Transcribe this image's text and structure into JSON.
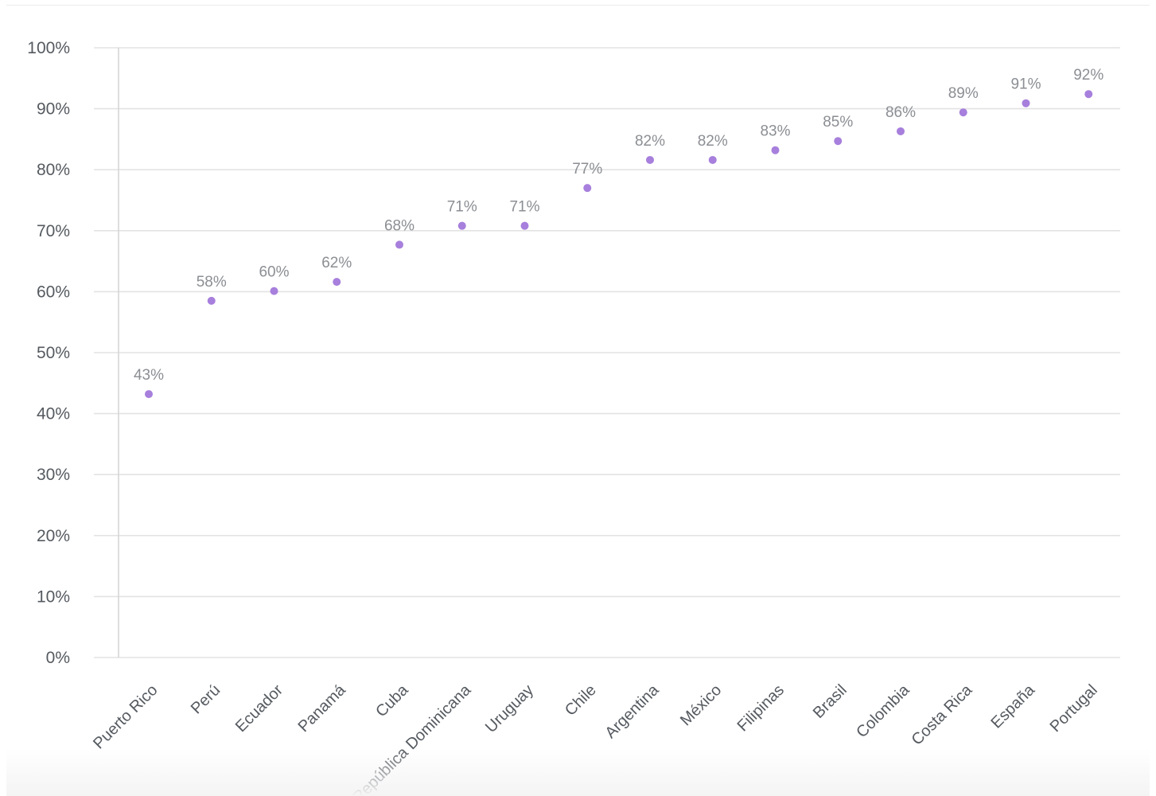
{
  "chart_data": {
    "type": "scatter",
    "categories": [
      "Puerto Rico",
      "Perú",
      "Ecuador",
      "Panamá",
      "Cuba",
      "República Dominicana",
      "Uruguay",
      "Chile",
      "Argentina",
      "México",
      "Filipinas",
      "Brasil",
      "Colombia",
      "Costa Rica",
      "España",
      "Portugal"
    ],
    "values": [
      43.2,
      58.5,
      60.1,
      61.6,
      67.7,
      70.8,
      70.8,
      77.0,
      81.6,
      81.6,
      83.2,
      84.7,
      86.3,
      89.4,
      90.9,
      92.4
    ],
    "data_labels": [
      "43%",
      "58%",
      "60%",
      "62%",
      "68%",
      "71%",
      "71%",
      "77%",
      "82%",
      "82%",
      "83%",
      "85%",
      "86%",
      "89%",
      "91%",
      "92%"
    ],
    "y_tick_labels": [
      "0%",
      "10%",
      "20%",
      "30%",
      "40%",
      "50%",
      "60%",
      "70%",
      "80%",
      "90%",
      "100%"
    ],
    "ylim": [
      0,
      100
    ],
    "title": "",
    "xlabel": "",
    "ylabel": "",
    "grid": true,
    "legend": "none",
    "colors": {
      "marker": "#a77fdc",
      "grid": "#e3e3e3",
      "axis": "#d6d6d6",
      "tick_text": "#555a60",
      "label_text": "#8b8e93"
    }
  }
}
